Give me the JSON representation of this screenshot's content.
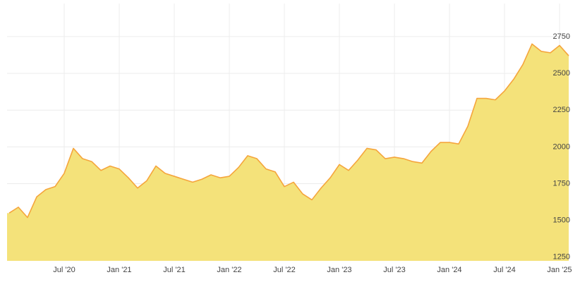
{
  "chart_data": {
    "type": "area",
    "categories": [
      null,
      null,
      null,
      null,
      null,
      null,
      "Jul '20",
      null,
      null,
      null,
      null,
      null,
      "Jan '21",
      null,
      null,
      null,
      null,
      null,
      "Jul '21",
      null,
      null,
      null,
      null,
      null,
      "Jan '22",
      null,
      null,
      null,
      null,
      null,
      "Jul '22",
      null,
      null,
      null,
      null,
      null,
      "Jan '23",
      null,
      null,
      null,
      null,
      null,
      "Jul '23",
      null,
      null,
      null,
      null,
      null,
      "Jan '24",
      null,
      null,
      null,
      null,
      null,
      "Jul '24",
      null,
      null,
      null,
      null,
      null,
      "Jan '25",
      null
    ],
    "series": [
      {
        "color": "#f5a53c",
        "fill": "#f4e27a",
        "values": [
          1550,
          1590,
          1520,
          1660,
          1710,
          1730,
          1820,
          1990,
          1920,
          1900,
          1840,
          1870,
          1850,
          1790,
          1720,
          1770,
          1870,
          1820,
          1800,
          1780,
          1760,
          1780,
          1810,
          1790,
          1800,
          1860,
          1940,
          1920,
          1850,
          1830,
          1730,
          1760,
          1680,
          1640,
          1720,
          1790,
          1880,
          1840,
          1910,
          1990,
          1980,
          1920,
          1930,
          1920,
          1900,
          1890,
          1970,
          2030,
          2030,
          2020,
          2140,
          2330,
          2330,
          2320,
          2380,
          2460,
          2560,
          2700,
          2650,
          2640,
          2690,
          2620
        ]
      }
    ],
    "ylim": [
      1225,
      2975
    ],
    "yticks": [
      1250,
      1500,
      1750,
      2000,
      2250,
      2500,
      2750
    ],
    "grid": true
  }
}
